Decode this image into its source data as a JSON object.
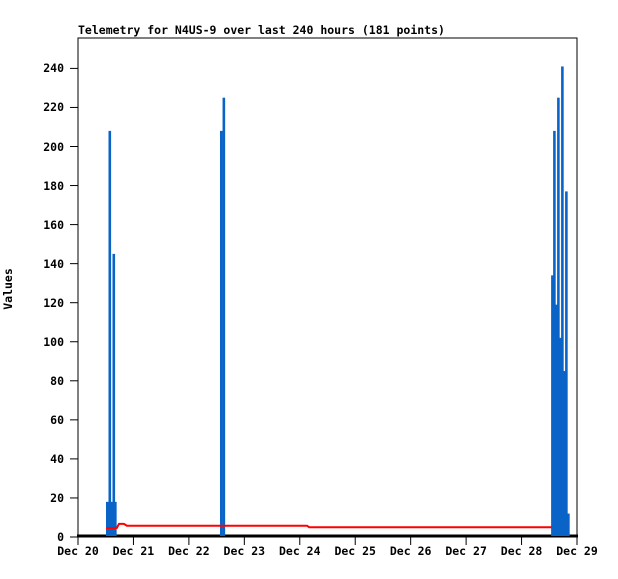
{
  "window": {
    "background_color": "#ffffff"
  },
  "chart_data": {
    "type": "bar",
    "subtype": "impulse-vertical-lines-with-overlay-line",
    "title": "Telemetry for N4US-9 over last 240 hours (181 points)",
    "ylabel": "Values",
    "xlabel": "",
    "ylim": [
      0,
      255
    ],
    "yticks": [
      0,
      20,
      40,
      60,
      80,
      100,
      120,
      140,
      160,
      180,
      200,
      220,
      240
    ],
    "xtick_labels": [
      "Dec 20",
      "Dec 21",
      "Dec 22",
      "Dec 23",
      "Dec 24",
      "Dec 25",
      "Dec 26",
      "Dec 27",
      "Dec 28",
      "Dec 29"
    ],
    "x_unit": "days_after_Dec_20",
    "grid": false,
    "legend_position": "none",
    "colors": {
      "impulse_series": "#0a64c8",
      "line_series": "#ff0000",
      "axis": "#000000",
      "text": "#000000"
    },
    "series": [
      {
        "name": "telemetry-values-impulses",
        "type": "impulse",
        "color": "#0a64c8",
        "points": [
          [
            0.523,
            18
          ],
          [
            0.568,
            208
          ],
          [
            0.604,
            18
          ],
          [
            0.64,
            145
          ],
          [
            0.668,
            18
          ],
          [
            2.579,
            208
          ],
          [
            2.625,
            225
          ],
          [
            8.551,
            134
          ],
          [
            8.587,
            208
          ],
          [
            8.623,
            119
          ],
          [
            8.659,
            225
          ],
          [
            8.695,
            102
          ],
          [
            8.731,
            241
          ],
          [
            8.767,
            85
          ],
          [
            8.803,
            177
          ],
          [
            8.839,
            12
          ]
        ]
      },
      {
        "name": "running-average-line",
        "type": "line",
        "color": "#ff0000",
        "points": [
          [
            0.505,
            4.6
          ],
          [
            0.7,
            4.6
          ],
          [
            0.74,
            6.7
          ],
          [
            0.83,
            6.7
          ],
          [
            0.88,
            5.8
          ],
          [
            4.13,
            5.8
          ],
          [
            4.17,
            5.0
          ],
          [
            8.55,
            5.0
          ]
        ]
      }
    ]
  }
}
